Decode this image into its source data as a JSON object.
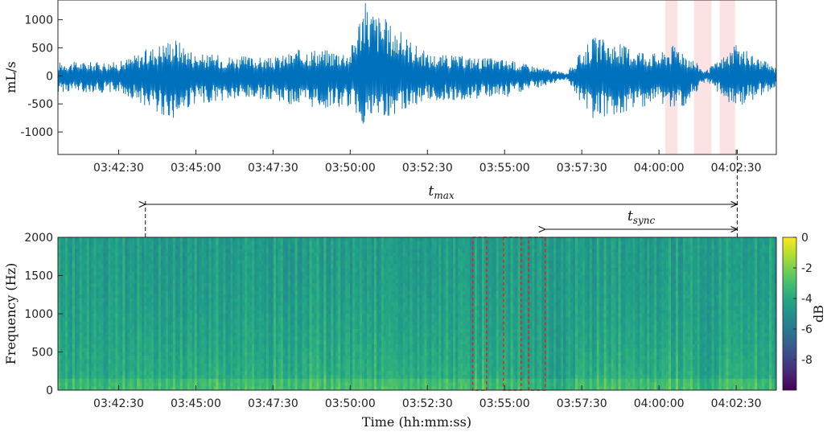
{
  "chart_data": [
    {
      "type": "line",
      "panel": "flow-signal",
      "ylabel": "mL/s",
      "xlabel": "",
      "ylim": [
        -1400,
        1350
      ],
      "yticks": [
        -1000,
        -500,
        0,
        500,
        1000
      ],
      "xlim": [
        "03:40:32",
        "04:03:48"
      ],
      "xticks": [
        "03:42:30",
        "03:45:00",
        "03:47:30",
        "03:50:00",
        "03:52:30",
        "03:55:00",
        "03:57:30",
        "04:00:00",
        "04:02:30"
      ],
      "grid": false,
      "series_color": "#0072BD",
      "x": [
        "03:40:32",
        "03:42:30",
        "03:44:18",
        "03:45:00",
        "03:47:30",
        "03:48:30",
        "03:50:00",
        "03:50:25",
        "03:52:30",
        "03:55:00",
        "03:57:00",
        "03:57:50",
        "04:00:00",
        "04:00:35",
        "04:01:30",
        "04:02:30",
        "04:03:48"
      ],
      "upper_envelope": [
        250,
        250,
        700,
        400,
        320,
        500,
        450,
        1350,
        400,
        300,
        50,
        700,
        400,
        600,
        80,
        550,
        150
      ],
      "lower_envelope": [
        -300,
        -300,
        -800,
        -500,
        -420,
        -600,
        -560,
        -900,
        -450,
        -400,
        -60,
        -800,
        -500,
        -680,
        -100,
        -600,
        -200
      ],
      "shaded_intervals": [
        [
          "04:00:12",
          "04:00:36"
        ],
        [
          "04:01:08",
          "04:01:42"
        ],
        [
          "04:01:58",
          "04:02:28"
        ]
      ],
      "shade_color": "#fbe3e3"
    },
    {
      "type": "heatmap",
      "panel": "spectrogram",
      "ylabel": "Frequency (Hz)",
      "xlabel": "Time (hh:mm:ss)",
      "ylim": [
        0,
        2000
      ],
      "yticks": [
        0,
        500,
        1000,
        1500,
        2000
      ],
      "xlim": [
        "03:40:32",
        "04:03:48"
      ],
      "xticks": [
        "03:42:30",
        "03:45:00",
        "03:47:30",
        "03:50:00",
        "03:52:30",
        "03:55:00",
        "03:57:30",
        "04:00:00",
        "04:02:30"
      ],
      "colorbar": {
        "label": "dB",
        "range": [
          -10,
          0
        ],
        "ticks": [
          0,
          -2,
          -4,
          -6,
          -8
        ],
        "colormap": "viridis"
      },
      "dashed_boxes": [
        [
          "03:53:58",
          "03:54:25"
        ],
        [
          "03:54:58",
          "03:55:32"
        ],
        [
          "03:55:47",
          "03:56:19"
        ]
      ],
      "dashed_box_color": "#e8201f",
      "vertical_markers": [
        "03:43:22",
        "04:02:32"
      ],
      "annotations": [
        {
          "text": "t",
          "sub": "max",
          "from": "03:43:22",
          "to": "04:02:32"
        },
        {
          "text": "t",
          "sub": "sync",
          "from": "03:56:19",
          "to": "04:02:32"
        }
      ]
    }
  ]
}
